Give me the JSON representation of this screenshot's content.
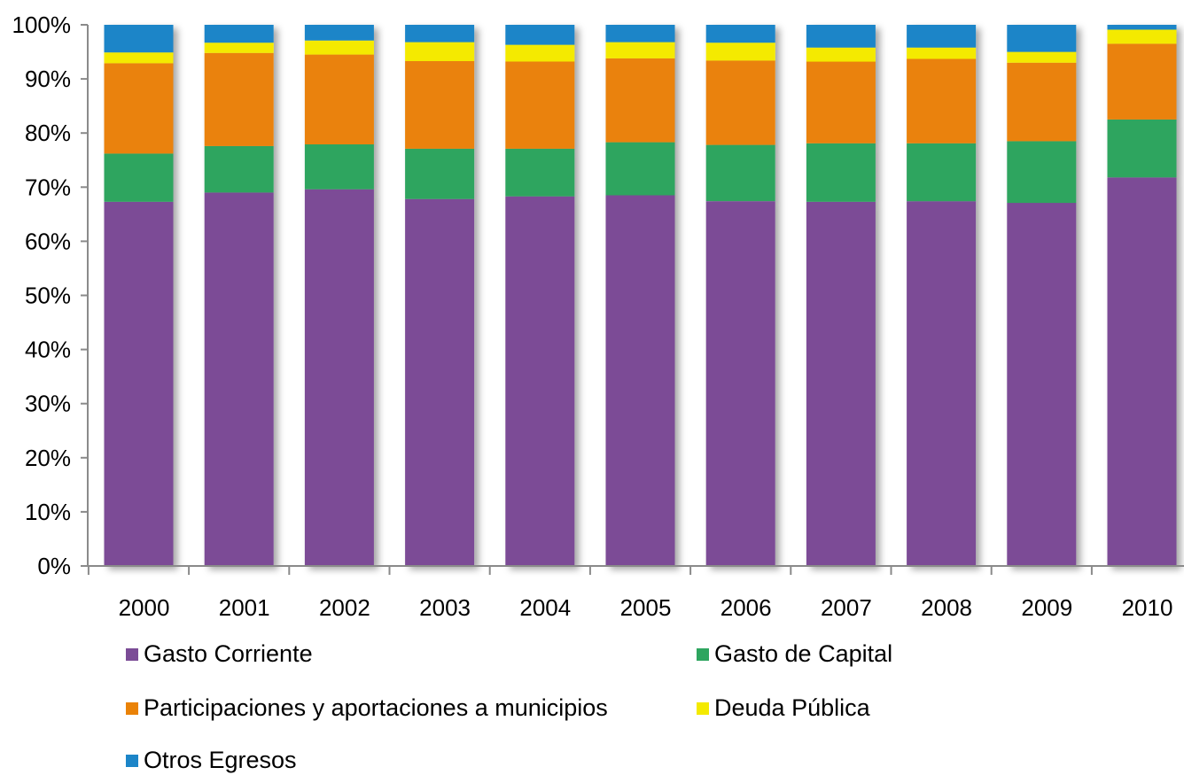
{
  "chart_data": {
    "type": "bar",
    "stacked": true,
    "percent_stacked": true,
    "categories": [
      "2000",
      "2001",
      "2002",
      "2003",
      "2004",
      "2005",
      "2006",
      "2007",
      "2008",
      "2009",
      "2010"
    ],
    "y_ticks": [
      "0%",
      "10%",
      "20%",
      "30%",
      "40%",
      "50%",
      "60%",
      "70%",
      "80%",
      "90%",
      "100%"
    ],
    "ylim": [
      0,
      100
    ],
    "grid": false,
    "legend_position": "bottom",
    "series": [
      {
        "name": "Gasto Corriente",
        "color": "#7B4C96",
        "values": [
          67.3,
          69.0,
          69.6,
          67.8,
          68.3,
          68.5,
          67.4,
          67.3,
          67.4,
          67.1,
          71.8
        ]
      },
      {
        "name": "Gasto de Capital",
        "color": "#2EA55F",
        "values": [
          8.9,
          8.6,
          8.3,
          9.3,
          8.8,
          9.8,
          10.4,
          10.8,
          10.7,
          11.4,
          10.7
        ]
      },
      {
        "name": "Participaciones y aportaciones a municipios",
        "color": "#EA8207",
        "values": [
          16.7,
          17.2,
          16.6,
          16.2,
          16.1,
          15.5,
          15.6,
          15.1,
          15.6,
          14.5,
          14.0
        ]
      },
      {
        "name": "Deuda Pública",
        "color": "#F4EA00",
        "values": [
          2.0,
          1.9,
          2.6,
          3.5,
          3.1,
          3.0,
          3.3,
          2.6,
          2.1,
          2.0,
          2.6
        ]
      },
      {
        "name": "Otros Egresos",
        "color": "#1C85C8",
        "values": [
          5.1,
          3.3,
          2.9,
          3.2,
          3.7,
          3.2,
          3.3,
          4.2,
          4.2,
          5.0,
          0.9
        ]
      }
    ]
  }
}
